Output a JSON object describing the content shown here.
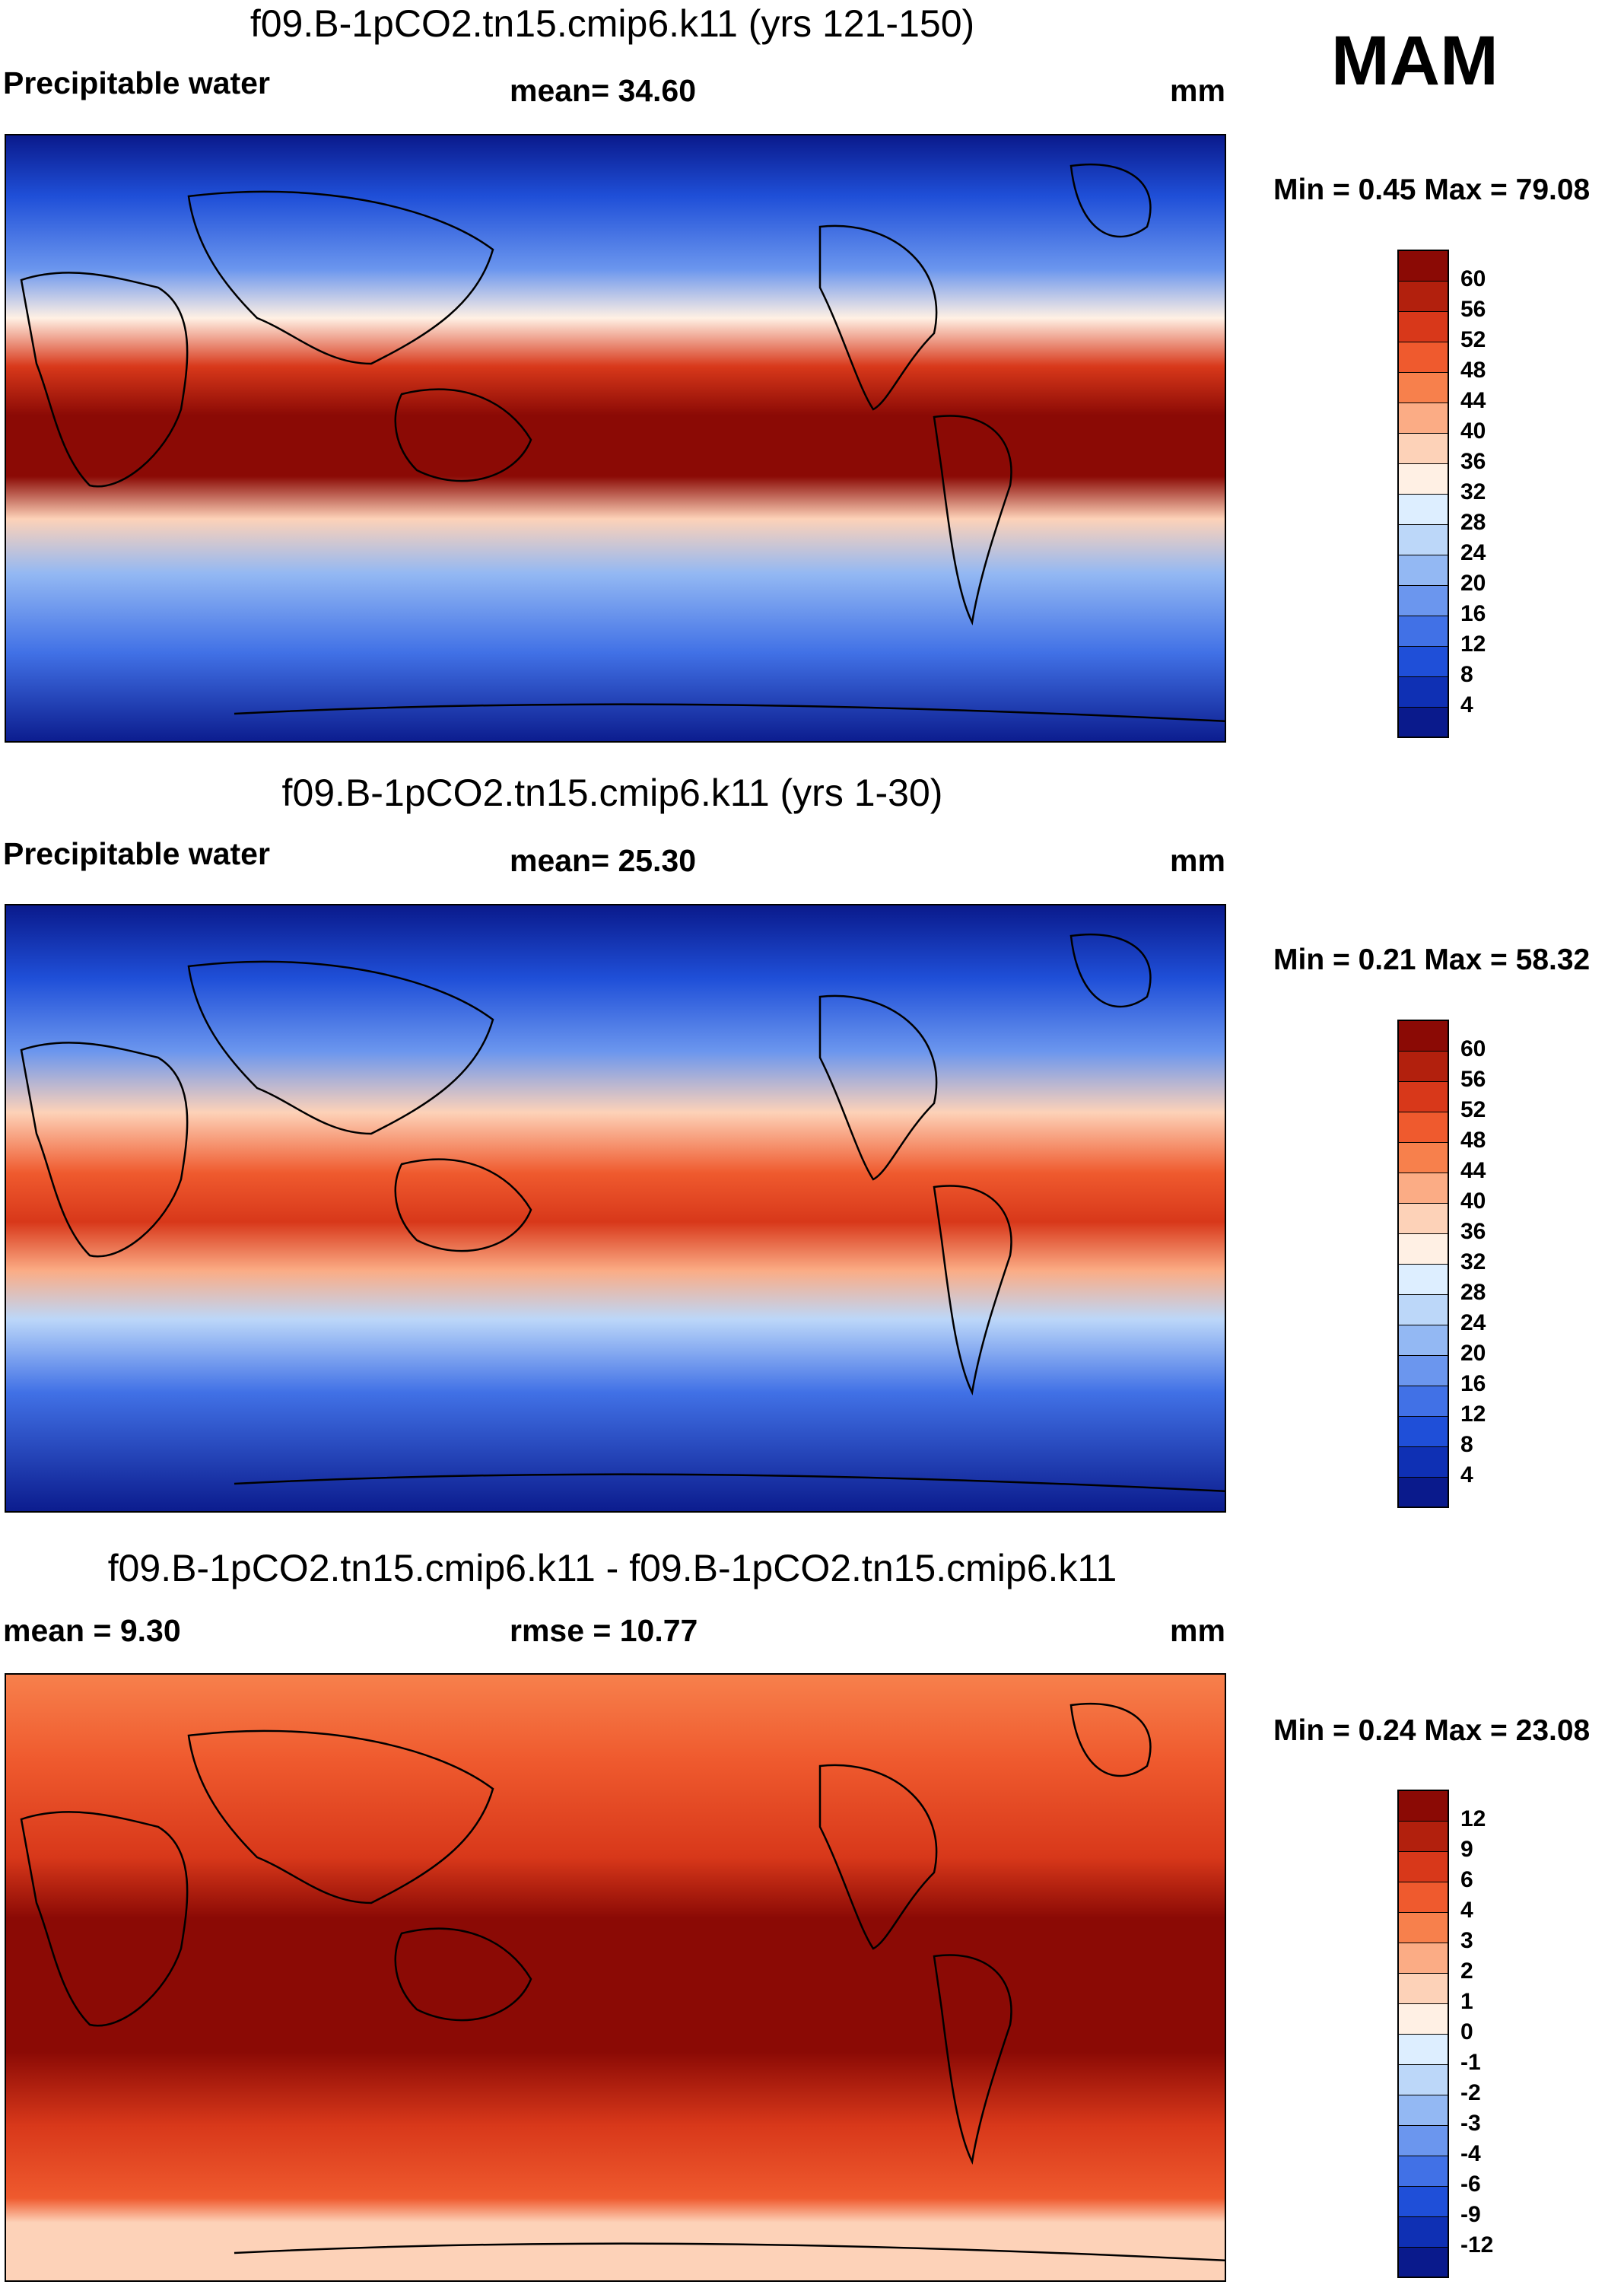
{
  "season": "MAM",
  "panels": [
    {
      "title": "f09.B-1pCO2.tn15.cmip6.k11 (yrs 121-150)",
      "left_label": "Precipitable water",
      "center_label": "mean=  34.60",
      "units": "mm",
      "min_max": "Min =   0.45 Max =  79.08",
      "colorbar": {
        "labels": [
          "60",
          "56",
          "52",
          "48",
          "44",
          "40",
          "36",
          "32",
          "28",
          "24",
          "20",
          "16",
          "12",
          "8",
          "4"
        ],
        "colors": [
          "#8b0a05",
          "#b2200d",
          "#d8381a",
          "#ef5a2e",
          "#f7804c",
          "#fbac85",
          "#fdd2b8",
          "#fff0e4",
          "#ddeeff",
          "#bcd7f9",
          "#93b8f3",
          "#6b96ee",
          "#4171e6",
          "#1f4fd8",
          "#0f30b4",
          "#0a1a8c"
        ]
      },
      "tropical_peak": "#8b0a05"
    },
    {
      "title": "f09.B-1pCO2.tn15.cmip6.k11 (yrs 1-30)",
      "left_label": "Precipitable water",
      "center_label": "mean=  25.30",
      "units": "mm",
      "min_max": "Min =   0.21 Max =  58.32",
      "colorbar": {
        "labels": [
          "60",
          "56",
          "52",
          "48",
          "44",
          "40",
          "36",
          "32",
          "28",
          "24",
          "20",
          "16",
          "12",
          "8",
          "4"
        ],
        "colors": [
          "#8b0a05",
          "#b2200d",
          "#d8381a",
          "#ef5a2e",
          "#f7804c",
          "#fbac85",
          "#fdd2b8",
          "#fff0e4",
          "#ddeeff",
          "#bcd7f9",
          "#93b8f3",
          "#6b96ee",
          "#4171e6",
          "#1f4fd8",
          "#0f30b4",
          "#0a1a8c"
        ]
      },
      "tropical_peak": "#d8381a"
    },
    {
      "title": "f09.B-1pCO2.tn15.cmip6.k11 - f09.B-1pCO2.tn15.cmip6.k11",
      "left_label": "mean =   9.30",
      "center_label": "rmse =  10.77",
      "units": "mm",
      "min_max": "Min =   0.24 Max =  23.08",
      "colorbar": {
        "labels": [
          "12",
          "9",
          "6",
          "4",
          "3",
          "2",
          "1",
          "0",
          "-1",
          "-2",
          "-3",
          "-4",
          "-6",
          "-9",
          "-12"
        ],
        "colors": [
          "#8b0a05",
          "#b2200d",
          "#d8381a",
          "#ef5a2e",
          "#f7804c",
          "#fbac85",
          "#fdd2b8",
          "#fff0e4",
          "#ddeeff",
          "#bcd7f9",
          "#93b8f3",
          "#6b96ee",
          "#4171e6",
          "#1f4fd8",
          "#0f30b4",
          "#0a1a8c"
        ]
      },
      "tropical_peak": "#8b0a05"
    }
  ]
}
